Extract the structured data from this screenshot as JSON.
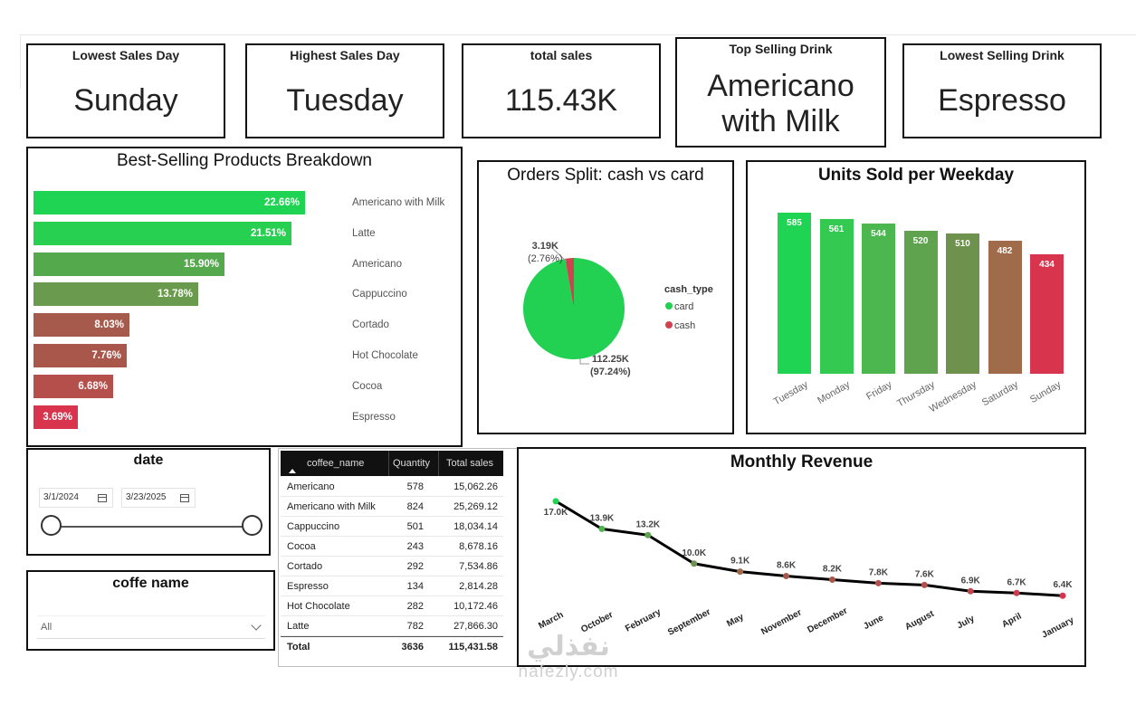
{
  "kpis": {
    "lowest_day": {
      "title": "Lowest Sales Day",
      "value": "Sunday"
    },
    "highest_day": {
      "title": "Highest Sales Day",
      "value": "Tuesday"
    },
    "total_sales": {
      "title": "total sales",
      "value": "115.43K"
    },
    "top_drink": {
      "title": "Top Selling Drink",
      "value_line1": "Americano",
      "value_line2": "with Milk"
    },
    "lowest_drink": {
      "title": "Lowest Selling Drink",
      "value": "Espresso"
    }
  },
  "best_selling": {
    "title": "Best-Selling Products Breakdown",
    "items": [
      {
        "label": "Americano with Milk",
        "value": "22.66%",
        "pct": 22.66,
        "color": "#1ed452"
      },
      {
        "label": "Latte",
        "value": "21.51%",
        "pct": 21.51,
        "color": "#27d050"
      },
      {
        "label": "Americano",
        "value": "15.90%",
        "pct": 15.9,
        "color": "#55a94d"
      },
      {
        "label": "Cappuccino",
        "value": "13.78%",
        "pct": 13.78,
        "color": "#6a9a4d"
      },
      {
        "label": "Cortado",
        "value": "8.03%",
        "pct": 8.03,
        "color": "#a65a4b"
      },
      {
        "label": "Hot Chocolate",
        "value": "7.76%",
        "pct": 7.76,
        "color": "#aa574b"
      },
      {
        "label": "Cocoa",
        "value": "6.68%",
        "pct": 6.68,
        "color": "#b54f4c"
      },
      {
        "label": "Espresso",
        "value": "3.69%",
        "pct": 3.69,
        "color": "#d9344e"
      }
    ]
  },
  "orders_split": {
    "title": "Orders Split: cash vs card",
    "legend_title": "cash_type",
    "card_label": "card",
    "cash_label": "cash",
    "card_value": "112.25K",
    "card_pct": "(97.24%)",
    "cash_value": "3.19K",
    "cash_pct": "(2.76%)",
    "card_color": "#22d152",
    "cash_color": "#d0424f"
  },
  "units_weekday": {
    "title": "Units Sold per Weekday",
    "days": [
      {
        "day": "Tuesday",
        "units": 585,
        "color": "#1ed452"
      },
      {
        "day": "Monday",
        "units": 561,
        "color": "#34c951"
      },
      {
        "day": "Friday",
        "units": 544,
        "color": "#4cb74f"
      },
      {
        "day": "Thursday",
        "units": 520,
        "color": "#5fa34e"
      },
      {
        "day": "Wednesday",
        "units": 510,
        "color": "#6e924d"
      },
      {
        "day": "Saturday",
        "units": 482,
        "color": "#a06b4b"
      },
      {
        "day": "Sunday",
        "units": 434,
        "color": "#d9344e"
      }
    ]
  },
  "date_slicer": {
    "title": "date",
    "start": "3/1/2024",
    "end": "3/23/2025"
  },
  "coffee_slicer": {
    "title": "coffe name",
    "selected": "All"
  },
  "table": {
    "headers": {
      "name": "coffee_name",
      "qty": "Quantity",
      "sales": "Total sales"
    },
    "rows": [
      {
        "name": "Americano",
        "qty": "578",
        "sales": "15,062.26"
      },
      {
        "name": "Americano with Milk",
        "qty": "824",
        "sales": "25,269.12"
      },
      {
        "name": "Cappuccino",
        "qty": "501",
        "sales": "18,034.14"
      },
      {
        "name": "Cocoa",
        "qty": "243",
        "sales": "8,678.16"
      },
      {
        "name": "Cortado",
        "qty": "292",
        "sales": "7,534.86"
      },
      {
        "name": "Espresso",
        "qty": "134",
        "sales": "2,814.28"
      },
      {
        "name": "Hot Chocolate",
        "qty": "282",
        "sales": "10,172.46"
      },
      {
        "name": "Latte",
        "qty": "782",
        "sales": "27,866.30"
      }
    ],
    "total": {
      "name": "Total",
      "qty": "3636",
      "sales": "115,431.58"
    }
  },
  "chart_data": {
    "type": "line",
    "title": "Monthly Revenue",
    "categories": [
      "March",
      "October",
      "February",
      "September",
      "May",
      "November",
      "December",
      "June",
      "August",
      "July",
      "April",
      "January"
    ],
    "values": [
      17.0,
      13.9,
      13.2,
      10.0,
      9.1,
      8.6,
      8.2,
      7.8,
      7.6,
      6.9,
      6.7,
      6.4
    ],
    "labels": [
      "17.0K",
      "13.9K",
      "13.2K",
      "10.0K",
      "9.1K",
      "8.6K",
      "8.2K",
      "7.8K",
      "7.6K",
      "6.9K",
      "6.7K",
      "6.4K"
    ],
    "marker_colors": [
      "#1ed452",
      "#4cb74f",
      "#5fa34e",
      "#6e924d",
      "#a06b4b",
      "#a65a4b",
      "#aa574b",
      "#b54f4c",
      "#b54f4c",
      "#c5444d",
      "#cc3e4d",
      "#d9344e"
    ],
    "unit": "K",
    "ylim": [
      5,
      18
    ]
  },
  "watermark": {
    "line1": "نفذلي",
    "line2": "nafezly.com"
  }
}
